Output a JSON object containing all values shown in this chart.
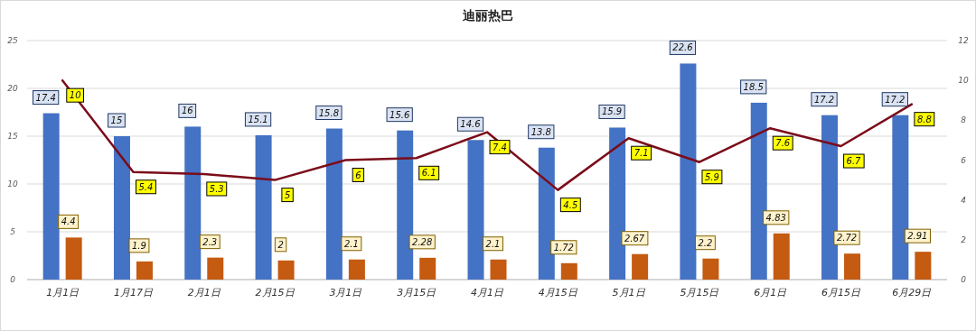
{
  "chart_data": {
    "type": "bar",
    "title": "迪丽热巴",
    "categories": [
      "1月1日",
      "1月17日",
      "2月1日",
      "2月15日",
      "3月1日",
      "3月15日",
      "4月1日",
      "4月15日",
      "5月1日",
      "5月15日",
      "6月1日",
      "6月15日",
      "6月29日"
    ],
    "series": [
      {
        "color": "#4472c4",
        "values": [
          17.4,
          15,
          16,
          15.1,
          15.8,
          15.6,
          14.6,
          13.8,
          15.9,
          22.6,
          18.5,
          17.2,
          17.2
        ]
      },
      {
        "color": "#c55a11",
        "values": [
          4.4,
          1.9,
          2.3,
          2,
          2.1,
          2.28,
          2.1,
          1.72,
          2.67,
          2.2,
          4.83,
          2.72,
          2.91
        ]
      },
      {
        "type": "line",
        "axis": "y2",
        "color": "#7b0c1a",
        "values": [
          10,
          5.4,
          5.3,
          5,
          6,
          6.1,
          7.4,
          4.5,
          7.1,
          5.9,
          7.6,
          6.7,
          8.8
        ]
      }
    ],
    "ylim": [
      0,
      25
    ],
    "yticks": [
      0,
      5,
      10,
      15,
      20,
      25
    ],
    "y2lim": [
      0,
      12
    ],
    "y2ticks": [
      0,
      2,
      4,
      6,
      8,
      10,
      12
    ],
    "grid": "y",
    "data_labels": true
  }
}
